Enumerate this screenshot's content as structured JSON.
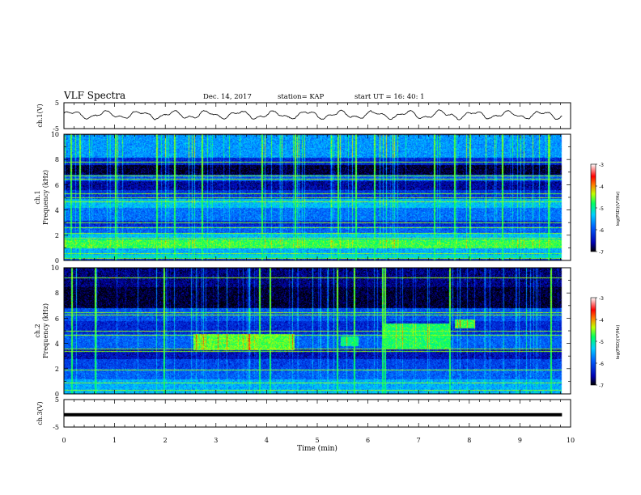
{
  "header": {
    "title": "VLF Spectra",
    "date": "Dec. 14, 2017",
    "station": "station= KAP",
    "start": "start UT = 16: 40: 1"
  },
  "colors": {
    "waveform": "#000000",
    "spectrogram_background": "#0a1f9c",
    "colormap": [
      "#000000",
      "#0000aa",
      "#0040ff",
      "#00c0ff",
      "#00ff80",
      "#40ff00",
      "#ffff00",
      "#ff8000",
      "#ff0000",
      "#ffffff"
    ]
  },
  "chart_data": [
    {
      "type": "line",
      "ylabel": "ch.1(V)",
      "ylim": [
        -5,
        5
      ],
      "y_ticks": [
        "5",
        "-5"
      ],
      "xlim": [
        0,
        10
      ],
      "series": [
        {
          "t_range_min": [
            0,
            9.83
          ],
          "pattern": "noisy oscillation",
          "amplitude_v": [
            -2.5,
            2.5
          ],
          "mean_v": 0.3
        }
      ]
    },
    {
      "type": "heatmap",
      "ylabel": "ch.1\nFrequency (kHz)",
      "ylim": [
        0,
        10
      ],
      "y_ticks": [
        "0",
        "2",
        "4",
        "6",
        "8",
        "10"
      ],
      "xlim": [
        0,
        10
      ],
      "data_extent_min": 9.83,
      "colorbar": {
        "label": "log(PSD)(V²/Hz)",
        "range": [
          -7,
          -3
        ],
        "ticks": [
          "-3",
          "-4",
          "-5",
          "-6",
          "-7"
        ]
      },
      "bands": [
        {
          "f_khz": [
            0.0,
            0.2
          ],
          "level": -6.2
        },
        {
          "f_khz": [
            0.2,
            0.5
          ],
          "level": -5.2
        },
        {
          "f_khz": [
            0.5,
            1.0
          ],
          "level": -5.5
        },
        {
          "f_khz": [
            1.0,
            1.7
          ],
          "level": -4.7
        },
        {
          "f_khz": [
            1.7,
            2.2
          ],
          "level": -5.4
        },
        {
          "f_khz": [
            2.2,
            2.7
          ],
          "level": -5.9
        },
        {
          "f_khz": [
            2.7,
            3.2
          ],
          "level": -6.3
        },
        {
          "f_khz": [
            3.2,
            4.2
          ],
          "level": -5.8
        },
        {
          "f_khz": [
            4.2,
            4.9
          ],
          "level": -5.4
        },
        {
          "f_khz": [
            4.9,
            5.6
          ],
          "level": -6.2
        },
        {
          "f_khz": [
            5.6,
            6.3
          ],
          "level": -6.6
        },
        {
          "f_khz": [
            6.3,
            6.8
          ],
          "level": -6.0
        },
        {
          "f_khz": [
            6.8,
            7.6
          ],
          "level": -6.9
        },
        {
          "f_khz": [
            7.6,
            8.2
          ],
          "level": -6.3
        },
        {
          "f_khz": [
            8.2,
            10.0
          ],
          "level": -5.6
        }
      ],
      "tone_lines_khz": [
        0.2,
        0.6,
        1.8,
        2.2,
        2.6,
        3.0,
        4.7,
        5.0,
        5.3,
        6.5,
        6.7,
        7.8
      ],
      "bursts_min": [
        0.13,
        0.3,
        1.0,
        1.82,
        2.18,
        2.72,
        3.9,
        4.55,
        5.4,
        5.75,
        6.12,
        7.3,
        7.7,
        8.0,
        8.65,
        9.55
      ]
    },
    {
      "type": "heatmap",
      "ylabel": "ch.2\nFrequency (kHz)",
      "ylim": [
        0,
        10
      ],
      "y_ticks": [
        "0",
        "2",
        "4",
        "6",
        "8",
        "10"
      ],
      "xlim": [
        0,
        10
      ],
      "data_extent_min": 9.83,
      "colorbar": {
        "label": "log(PSD)(V²/Hz)",
        "range": [
          -7,
          -3
        ],
        "ticks": [
          "-3",
          "-4",
          "-5",
          "-6",
          "-7"
        ]
      },
      "bands": [
        {
          "f_khz": [
            0.0,
            0.3
          ],
          "level": -5.4
        },
        {
          "f_khz": [
            0.3,
            1.2
          ],
          "level": -5.5
        },
        {
          "f_khz": [
            1.2,
            2.0
          ],
          "level": -5.9
        },
        {
          "f_khz": [
            2.0,
            2.8
          ],
          "level": -6.1
        },
        {
          "f_khz": [
            2.8,
            3.6
          ],
          "level": -6.5
        },
        {
          "f_khz": [
            3.6,
            4.8
          ],
          "level": -5.9
        },
        {
          "f_khz": [
            4.8,
            5.8
          ],
          "level": -6.3
        },
        {
          "f_khz": [
            5.8,
            6.8
          ],
          "level": -6.0
        },
        {
          "f_khz": [
            6.8,
            8.5
          ],
          "level": -6.9
        },
        {
          "f_khz": [
            8.5,
            10.0
          ],
          "level": -6.7
        }
      ],
      "patches": [
        {
          "t_min": [
            2.55,
            4.55
          ],
          "f_khz": [
            3.5,
            4.8
          ],
          "level": -4.6
        },
        {
          "t_min": [
            5.45,
            5.8
          ],
          "f_khz": [
            3.8,
            4.6
          ],
          "level": -4.9
        },
        {
          "t_min": [
            6.3,
            7.6
          ],
          "f_khz": [
            3.6,
            5.6
          ],
          "level": -4.8
        },
        {
          "t_min": [
            7.7,
            8.1
          ],
          "f_khz": [
            5.2,
            5.9
          ],
          "level": -4.7
        }
      ],
      "tone_lines_khz": [
        0.3,
        0.9,
        1.9,
        3.4,
        3.6,
        4.7,
        5.0,
        6.3,
        6.5,
        9.2
      ],
      "bursts_min": [
        0.15,
        0.6,
        1.97,
        3.85,
        4.05,
        5.38,
        5.72,
        6.28,
        6.32,
        7.6,
        9.6
      ]
    },
    {
      "type": "line",
      "ylabel": "ch.3(V)",
      "ylim": [
        -5,
        5
      ],
      "y_ticks": [
        "5",
        "-5"
      ],
      "xlim": [
        0,
        10
      ],
      "xlabel": "Time (min)",
      "x_ticks": [
        "0",
        "1",
        "2",
        "3",
        "4",
        "5",
        "6",
        "7",
        "8",
        "9",
        "10"
      ],
      "series": [
        {
          "t_range_min": [
            0,
            9.83
          ],
          "pattern": "flat",
          "value_v": -0.5
        }
      ]
    }
  ]
}
